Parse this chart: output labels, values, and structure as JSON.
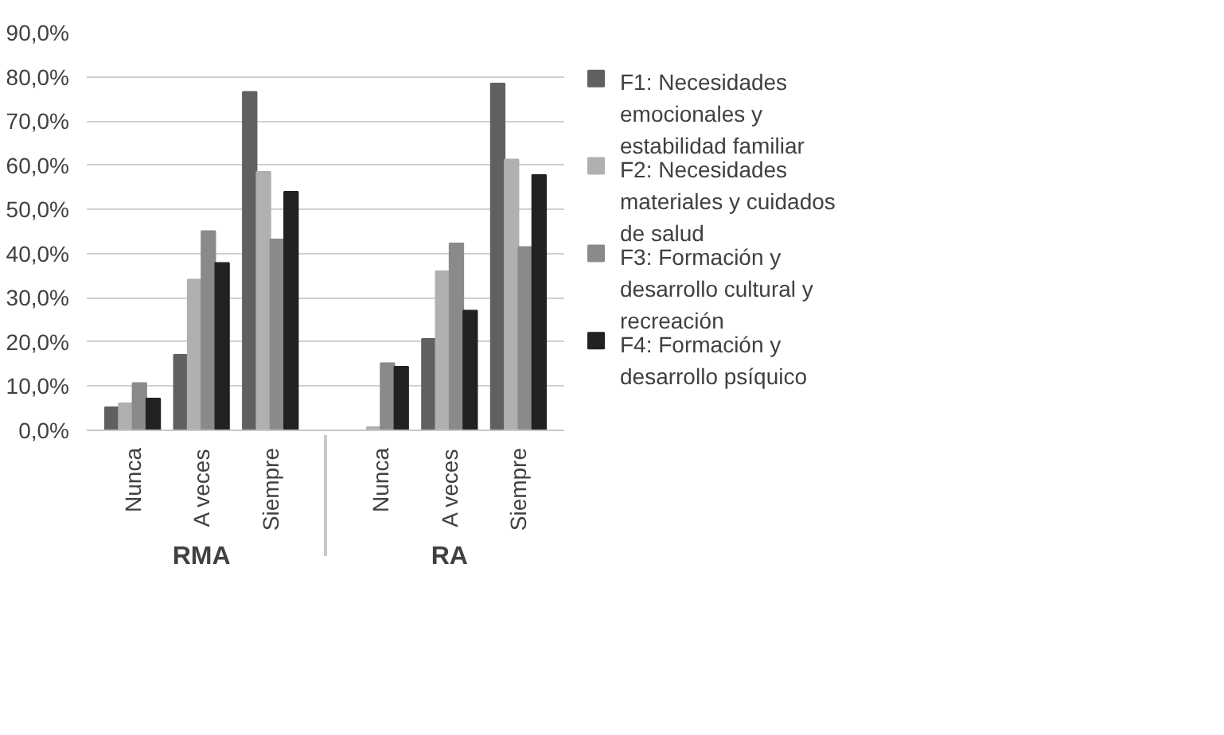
{
  "chart_data": {
    "type": "bar",
    "categories": [
      "Nunca",
      "A veces",
      "Siempre",
      "Nunca",
      "A veces",
      "Siempre"
    ],
    "annotations": [
      "RMA",
      "RA"
    ],
    "series": [
      {
        "name": "F1: Necesidades emocionales y estabilidad familiar",
        "color": "#606060",
        "values": [
          5.2,
          17.1,
          76.6,
          0,
          20.7,
          78.5
        ]
      },
      {
        "name": "F2: Necesidades materiales y cuidados de salud",
        "color": "#b0b0b0",
        "values": [
          6.1,
          34.1,
          58.5,
          0.7,
          36.0,
          61.3
        ]
      },
      {
        "name": "F3: Formación y desarrollo cultural y recreación",
        "color": "#8a8a8a",
        "values": [
          10.7,
          45.1,
          43.2,
          15.2,
          42.3,
          41.5
        ]
      },
      {
        "name": "F4: Formación y desarrollo psíquico",
        "color": "#222222",
        "values": [
          7.2,
          37.9,
          54.0,
          14.4,
          27.1,
          57.8
        ]
      }
    ],
    "ylim": [
      0,
      90
    ],
    "yticks": [
      {
        "value": 0,
        "label": "0,0%"
      },
      {
        "value": 10,
        "label": "10,0%"
      },
      {
        "value": 20,
        "label": "20,0%"
      },
      {
        "value": 30,
        "label": "30,0%"
      },
      {
        "value": 40,
        "label": "40,0%"
      },
      {
        "value": 50,
        "label": "50,0%"
      },
      {
        "value": 60,
        "label": "60,0%"
      },
      {
        "value": 70,
        "label": "70,0%"
      },
      {
        "value": 80,
        "label": "80,0%"
      },
      {
        "value": 90,
        "label": "90,0%"
      }
    ],
    "grid": "y",
    "legend": "right"
  }
}
